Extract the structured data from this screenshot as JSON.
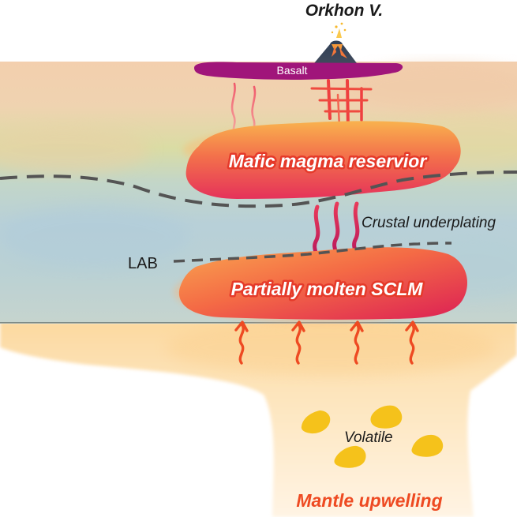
{
  "labels": {
    "volcano": "Orkhon V.",
    "basalt": "Basalt",
    "mafic_reservoir": "Mafic magma reservior",
    "crustal_underplating": "Crustal underplating",
    "lab": "LAB",
    "sclm": "Partially molten SCLM",
    "volatile": "Volatile",
    "mantle_upwelling": "Mantle upwelling"
  },
  "colors": {
    "basalt": "#a0157a",
    "magma_red": "#e8304a",
    "arrow_red": "#ee4a22",
    "volatile": "#f5c21b",
    "crust_top": "#f3d2b0",
    "crust_mid": "#d8dca4",
    "lithosphere": "#b9d2d6",
    "mantle": "#fde1b4",
    "dashed_line": "#545454"
  }
}
